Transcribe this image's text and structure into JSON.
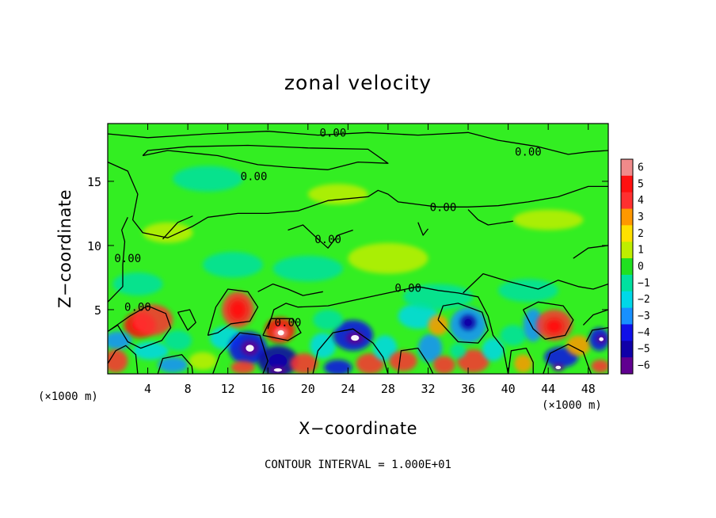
{
  "chart_data": {
    "type": "heatmap",
    "title": "zonal velocity",
    "xlabel": "X−coordinate",
    "ylabel": "Z−coordinate",
    "x_unit_left": "(×1000 m)",
    "x_unit_right": "(×1000 m)",
    "xlim": [
      0,
      50
    ],
    "ylim": [
      0,
      19.5
    ],
    "x_ticks": [
      4,
      8,
      12,
      16,
      20,
      24,
      28,
      32,
      36,
      40,
      44,
      48
    ],
    "x_tick_labels": [
      "4",
      "8",
      "12",
      "16",
      "20",
      "24",
      "28",
      "32",
      "36",
      "40",
      "44",
      "48"
    ],
    "y_ticks": [
      5,
      10,
      15
    ],
    "y_tick_labels": [
      "5",
      "10",
      "15"
    ],
    "footer": "CONTOUR INTERVAL = 1.000E+01",
    "colorbar": {
      "ticks": [
        6,
        5,
        4,
        3,
        2,
        1,
        0,
        -1,
        -2,
        -3,
        -4,
        -5,
        -6
      ],
      "tick_labels": [
        "6",
        "5",
        "4",
        "3",
        "2",
        "1",
        "0",
        "−1",
        "−2",
        "−3",
        "−4",
        "−5",
        "−6"
      ],
      "colors": [
        "#f08a8a",
        "#ff1010",
        "#ff3030",
        "#ff9800",
        "#ffe000",
        "#bfee00",
        "#20e020",
        "#00e0a0",
        "#00d8e8",
        "#1890ff",
        "#1010e8",
        "#1000a8",
        "#600090"
      ]
    },
    "background_color": "#33ee22",
    "contour_labels": [
      {
        "text": "0.00",
        "x": 22.5,
        "y": 18.8
      },
      {
        "text": "0.00",
        "x": 42.0,
        "y": 17.3
      },
      {
        "text": "0.00",
        "x": 14.6,
        "y": 15.4
      },
      {
        "text": "0.00",
        "x": 33.5,
        "y": 13.0
      },
      {
        "text": "0.00",
        "x": 22.0,
        "y": 10.5
      },
      {
        "text": "0.00",
        "x": 2.0,
        "y": 9.0
      },
      {
        "text": "0.00",
        "x": 30.0,
        "y": 6.7
      },
      {
        "text": "0.00",
        "x": 3.0,
        "y": 5.2
      },
      {
        "text": "0.00",
        "x": 18.0,
        "y": 4.0
      }
    ],
    "blobs": [
      {
        "x": 3.2,
        "y": 3.8,
        "rx": 1.6,
        "ry": 1.0,
        "v": 5
      },
      {
        "x": 4.5,
        "y": 4.2,
        "rx": 2.0,
        "ry": 1.2,
        "v": 4
      },
      {
        "x": 1.0,
        "y": 2.6,
        "rx": 1.4,
        "ry": 0.7,
        "v": -3
      },
      {
        "x": 0.8,
        "y": 1.0,
        "rx": 1.2,
        "ry": 0.9,
        "v": 4
      },
      {
        "x": 4.3,
        "y": 1.8,
        "rx": 1.8,
        "ry": 0.7,
        "v": -2
      },
      {
        "x": 6.5,
        "y": 0.7,
        "rx": 1.5,
        "ry": 0.6,
        "v": -3
      },
      {
        "x": 7.0,
        "y": 2.6,
        "rx": 1.4,
        "ry": 0.8,
        "v": -1
      },
      {
        "x": 9.5,
        "y": 1.0,
        "rx": 1.4,
        "ry": 0.7,
        "v": 1
      },
      {
        "x": 11.8,
        "y": 2.8,
        "rx": 1.6,
        "ry": 0.9,
        "v": -2
      },
      {
        "x": 13.0,
        "y": 5.0,
        "rx": 1.6,
        "ry": 1.4,
        "v": 4
      },
      {
        "x": 13.0,
        "y": 5.0,
        "rx": 0.9,
        "ry": 0.8,
        "v": 5
      },
      {
        "x": 14.0,
        "y": 2.0,
        "rx": 1.9,
        "ry": 1.3,
        "v": -4
      },
      {
        "x": 14.2,
        "y": 2.0,
        "rx": 0.9,
        "ry": 0.6,
        "v": -6
      },
      {
        "x": 13.5,
        "y": 0.5,
        "rx": 1.2,
        "ry": 0.5,
        "v": 4
      },
      {
        "x": 17.2,
        "y": 3.4,
        "rx": 1.5,
        "ry": 1.0,
        "v": 5
      },
      {
        "x": 17.3,
        "y": 3.2,
        "rx": 0.7,
        "ry": 0.45,
        "v": 6
      },
      {
        "x": 17.0,
        "y": 1.0,
        "rx": 2.0,
        "ry": 1.2,
        "v": -5
      },
      {
        "x": 17.0,
        "y": 0.3,
        "rx": 0.9,
        "ry": 0.3,
        "v": -6
      },
      {
        "x": 19.6,
        "y": 0.8,
        "rx": 1.4,
        "ry": 0.8,
        "v": 4
      },
      {
        "x": 21.5,
        "y": 2.2,
        "rx": 1.3,
        "ry": 1.0,
        "v": -2
      },
      {
        "x": 23.0,
        "y": 0.5,
        "rx": 1.4,
        "ry": 0.6,
        "v": -4
      },
      {
        "x": 24.5,
        "y": 3.0,
        "rx": 2.0,
        "ry": 1.2,
        "v": -4
      },
      {
        "x": 24.7,
        "y": 2.8,
        "rx": 0.9,
        "ry": 0.5,
        "v": -6
      },
      {
        "x": 26.2,
        "y": 0.8,
        "rx": 1.4,
        "ry": 0.8,
        "v": 4
      },
      {
        "x": 27.7,
        "y": 2.0,
        "rx": 1.2,
        "ry": 1.0,
        "v": -2
      },
      {
        "x": 29.5,
        "y": 1.0,
        "rx": 1.4,
        "ry": 0.8,
        "v": 4
      },
      {
        "x": 31.0,
        "y": 4.5,
        "rx": 2.0,
        "ry": 1.0,
        "v": -2
      },
      {
        "x": 32.2,
        "y": 2.0,
        "rx": 1.2,
        "ry": 1.1,
        "v": -3
      },
      {
        "x": 33.0,
        "y": 3.8,
        "rx": 1.0,
        "ry": 0.8,
        "v": 3
      },
      {
        "x": 33.6,
        "y": 0.7,
        "rx": 1.1,
        "ry": 0.7,
        "v": 4
      },
      {
        "x": 36.0,
        "y": 3.8,
        "rx": 1.8,
        "ry": 1.4,
        "v": -3
      },
      {
        "x": 36.0,
        "y": 4.0,
        "rx": 0.8,
        "ry": 0.6,
        "v": -5
      },
      {
        "x": 36.5,
        "y": 1.0,
        "rx": 1.6,
        "ry": 0.9,
        "v": 4
      },
      {
        "x": 38.5,
        "y": 1.9,
        "rx": 1.1,
        "ry": 0.9,
        "v": -2
      },
      {
        "x": 40.5,
        "y": 3.0,
        "rx": 1.3,
        "ry": 0.8,
        "v": -1
      },
      {
        "x": 42.5,
        "y": 3.8,
        "rx": 1.0,
        "ry": 1.3,
        "v": -3
      },
      {
        "x": 41.5,
        "y": 0.8,
        "rx": 0.9,
        "ry": 0.7,
        "v": 3
      },
      {
        "x": 44.6,
        "y": 3.8,
        "rx": 1.8,
        "ry": 1.2,
        "v": 4
      },
      {
        "x": 44.6,
        "y": 3.7,
        "rx": 0.9,
        "ry": 0.6,
        "v": 5
      },
      {
        "x": 45.3,
        "y": 1.3,
        "rx": 1.7,
        "ry": 0.8,
        "v": -4
      },
      {
        "x": 45.0,
        "y": 0.5,
        "rx": 0.6,
        "ry": 0.3,
        "v": -6
      },
      {
        "x": 47.0,
        "y": 2.2,
        "rx": 1.2,
        "ry": 0.8,
        "v": 3
      },
      {
        "x": 49.1,
        "y": 2.7,
        "rx": 1.0,
        "ry": 0.9,
        "v": -4
      },
      {
        "x": 49.3,
        "y": 2.7,
        "rx": 0.5,
        "ry": 0.35,
        "v": -6
      },
      {
        "x": 49.2,
        "y": 0.6,
        "rx": 0.9,
        "ry": 0.5,
        "v": 4
      },
      {
        "x": 35.0,
        "y": 1.8,
        "rx": 0.8,
        "ry": 0.6,
        "v": -1
      },
      {
        "x": 22.0,
        "y": 4.2,
        "rx": 1.5,
        "ry": 0.8,
        "v": -1
      },
      {
        "x": 3.0,
        "y": 7.0,
        "rx": 2.5,
        "ry": 0.9,
        "v": -1
      },
      {
        "x": 12.5,
        "y": 8.5,
        "rx": 3.0,
        "ry": 1.0,
        "v": -1
      },
      {
        "x": 20.0,
        "y": 8.2,
        "rx": 3.5,
        "ry": 1.0,
        "v": -1
      },
      {
        "x": 33.0,
        "y": 6.0,
        "rx": 3.5,
        "ry": 1.0,
        "v": -1
      },
      {
        "x": 42.0,
        "y": 6.5,
        "rx": 3.0,
        "ry": 0.9,
        "v": -1
      },
      {
        "x": 10.0,
        "y": 15.2,
        "rx": 3.5,
        "ry": 1.0,
        "v": -1
      },
      {
        "x": 28.0,
        "y": 9.0,
        "rx": 4.0,
        "ry": 1.2,
        "v": 1
      },
      {
        "x": 23.0,
        "y": 14.0,
        "rx": 3.0,
        "ry": 0.8,
        "v": 1
      },
      {
        "x": 44.0,
        "y": 12.0,
        "rx": 3.5,
        "ry": 0.8,
        "v": 1
      },
      {
        "x": 6.0,
        "y": 11.0,
        "rx": 2.5,
        "ry": 0.8,
        "v": 1
      }
    ],
    "contours": [
      [
        [
          0,
          18.7
        ],
        [
          4,
          18.4
        ],
        [
          10,
          18.7
        ],
        [
          16,
          18.9
        ],
        [
          21,
          18.6
        ],
        [
          26,
          18.8
        ],
        [
          31,
          18.6
        ],
        [
          36,
          18.8
        ],
        [
          39,
          18.2
        ],
        [
          43,
          17.7
        ],
        [
          46,
          17.1
        ],
        [
          48,
          17.3
        ],
        [
          50,
          17.4
        ]
      ],
      [
        [
          3.5,
          17.0
        ],
        [
          6,
          17.4
        ],
        [
          11,
          17.0
        ],
        [
          15,
          16.3
        ],
        [
          18,
          16.1
        ],
        [
          22,
          15.9
        ],
        [
          25,
          16.5
        ],
        [
          28,
          16.4
        ],
        [
          26,
          17.5
        ],
        [
          20,
          17.6
        ],
        [
          14,
          17.8
        ],
        [
          8,
          17.7
        ],
        [
          4,
          17.4
        ],
        [
          3.5,
          17.0
        ]
      ],
      [
        [
          0,
          16.5
        ],
        [
          2,
          15.8
        ],
        [
          3,
          14.0
        ],
        [
          2.5,
          12.0
        ],
        [
          3.5,
          11.0
        ],
        [
          6,
          10.6
        ],
        [
          8.5,
          11.5
        ],
        [
          10,
          12.2
        ],
        [
          13,
          12.5
        ],
        [
          16,
          12.5
        ],
        [
          19,
          12.7
        ],
        [
          22,
          13.5
        ],
        [
          26,
          13.8
        ],
        [
          27,
          14.3
        ],
        [
          28,
          14.0
        ],
        [
          29,
          13.4
        ],
        [
          31,
          13.2
        ],
        [
          33,
          13.0
        ],
        [
          36,
          13.0
        ],
        [
          39,
          13.1
        ],
        [
          42,
          13.4
        ],
        [
          45,
          13.8
        ],
        [
          48,
          14.6
        ],
        [
          50,
          14.6
        ]
      ],
      [
        [
          0,
          5.6
        ],
        [
          1.5,
          6.8
        ],
        [
          1.5,
          8.5
        ],
        [
          1.7,
          10.3
        ],
        [
          1.4,
          11.2
        ],
        [
          2.0,
          12.2
        ]
      ],
      [
        [
          0,
          3.3
        ],
        [
          2.2,
          4.5
        ],
        [
          4,
          5.3
        ],
        [
          5.8,
          4.7
        ],
        [
          6.3,
          3.6
        ],
        [
          5.4,
          2.6
        ],
        [
          3.3,
          2.0
        ],
        [
          2,
          2.5
        ],
        [
          1.0,
          3.8
        ],
        [
          0,
          3.3
        ]
      ],
      [
        [
          7,
          4.8
        ],
        [
          8.2,
          5.0
        ],
        [
          8.8,
          4.0
        ],
        [
          8.0,
          3.4
        ],
        [
          7,
          4.8
        ]
      ],
      [
        [
          10,
          3.0
        ],
        [
          10.8,
          5.2
        ],
        [
          12.0,
          6.6
        ],
        [
          14.0,
          6.4
        ],
        [
          15.0,
          5.2
        ],
        [
          14.2,
          4.1
        ],
        [
          12.3,
          3.9
        ],
        [
          11.0,
          3.2
        ],
        [
          10,
          3.0
        ]
      ],
      [
        [
          15.5,
          3.0
        ],
        [
          16.3,
          4.3
        ],
        [
          18.5,
          4.3
        ],
        [
          19.3,
          3.2
        ],
        [
          18.0,
          2.6
        ],
        [
          15.5,
          3.0
        ]
      ],
      [
        [
          10.5,
          0
        ],
        [
          11.2,
          1.5
        ],
        [
          13.2,
          3.2
        ],
        [
          15.2,
          3.0
        ],
        [
          16.0,
          1.0
        ],
        [
          15.5,
          0
        ]
      ],
      [
        [
          16.0,
          3.5
        ],
        [
          16.6,
          5.0
        ],
        [
          17.8,
          5.5
        ],
        [
          19.0,
          5.2
        ],
        [
          22.0,
          5.3
        ],
        [
          25.0,
          5.8
        ],
        [
          28.0,
          6.3
        ],
        [
          31.0,
          6.8
        ],
        [
          33.0,
          6.5
        ],
        [
          35.0,
          6.3
        ],
        [
          37.0,
          6.0
        ],
        [
          38.0,
          4.5
        ],
        [
          38.5,
          3.0
        ],
        [
          39.5,
          2.0
        ],
        [
          40.0,
          0
        ]
      ],
      [
        [
          20.5,
          0
        ],
        [
          21.0,
          1.8
        ],
        [
          22.5,
          3.2
        ],
        [
          24.5,
          3.5
        ],
        [
          26.5,
          2.4
        ],
        [
          27.5,
          1.3
        ],
        [
          28.0,
          0
        ]
      ],
      [
        [
          29.0,
          0
        ],
        [
          29.3,
          1.8
        ],
        [
          31.0,
          2.0
        ],
        [
          32.0,
          0.8
        ],
        [
          32.5,
          0
        ]
      ],
      [
        [
          33.0,
          4.2
        ],
        [
          33.5,
          5.3
        ],
        [
          35.0,
          5.5
        ],
        [
          37.4,
          4.8
        ],
        [
          38.0,
          3.4
        ],
        [
          37.0,
          2.4
        ],
        [
          35.0,
          2.5
        ],
        [
          33.0,
          4.2
        ]
      ],
      [
        [
          40.0,
          0
        ],
        [
          40.3,
          1.8
        ],
        [
          41.8,
          2.0
        ],
        [
          42.5,
          0.9
        ],
        [
          42.5,
          0
        ]
      ],
      [
        [
          41.5,
          5.0
        ],
        [
          43.0,
          5.6
        ],
        [
          45.5,
          5.3
        ],
        [
          46.5,
          4.2
        ],
        [
          45.7,
          3.0
        ],
        [
          43.7,
          2.7
        ],
        [
          42.5,
          3.5
        ],
        [
          41.5,
          5.0
        ]
      ],
      [
        [
          43.5,
          0
        ],
        [
          44.2,
          1.6
        ],
        [
          46.0,
          2.3
        ],
        [
          47.5,
          1.7
        ],
        [
          48.0,
          0.6
        ],
        [
          48.3,
          0
        ]
      ],
      [
        [
          47.5,
          3.8
        ],
        [
          48.5,
          4.6
        ],
        [
          50,
          5.0
        ]
      ],
      [
        [
          47.8,
          2.5
        ],
        [
          48.4,
          3.4
        ],
        [
          50,
          3.6
        ]
      ],
      [
        [
          46.5,
          9.0
        ],
        [
          48.0,
          9.8
        ],
        [
          50,
          10.0
        ]
      ],
      [
        [
          35.5,
          6.3
        ],
        [
          37.5,
          7.8
        ],
        [
          40.0,
          7.2
        ],
        [
          43.0,
          6.6
        ],
        [
          45.0,
          7.3
        ],
        [
          47.0,
          6.8
        ],
        [
          48.5,
          6.6
        ],
        [
          50,
          7.0
        ]
      ],
      [
        [
          18.0,
          11.2
        ],
        [
          19.5,
          11.6
        ],
        [
          21.0,
          10.5
        ],
        [
          22.0,
          9.8
        ],
        [
          23.0,
          10.8
        ],
        [
          24.5,
          11.2
        ]
      ],
      [
        [
          5.5,
          10.5
        ],
        [
          7.0,
          11.8
        ],
        [
          8.5,
          12.3
        ]
      ],
      [
        [
          36.0,
          12.8
        ],
        [
          37.0,
          12.0
        ],
        [
          38.0,
          11.6
        ],
        [
          40.5,
          11.9
        ]
      ],
      [
        [
          31,
          11.8
        ],
        [
          31.5,
          10.8
        ],
        [
          32,
          11.3
        ]
      ],
      [
        [
          15.0,
          6.4
        ],
        [
          16.5,
          7.0
        ],
        [
          18.0,
          6.6
        ],
        [
          19.5,
          6.1
        ],
        [
          21.5,
          6.4
        ]
      ],
      [
        [
          0,
          0.8
        ],
        [
          0.8,
          1.8
        ],
        [
          1.8,
          2.2
        ],
        [
          2.8,
          1.5
        ],
        [
          3.0,
          0
        ]
      ],
      [
        [
          5.0,
          0
        ],
        [
          5.5,
          1.2
        ],
        [
          7.4,
          1.5
        ],
        [
          8.4,
          0.6
        ],
        [
          8.5,
          0
        ]
      ]
    ]
  }
}
